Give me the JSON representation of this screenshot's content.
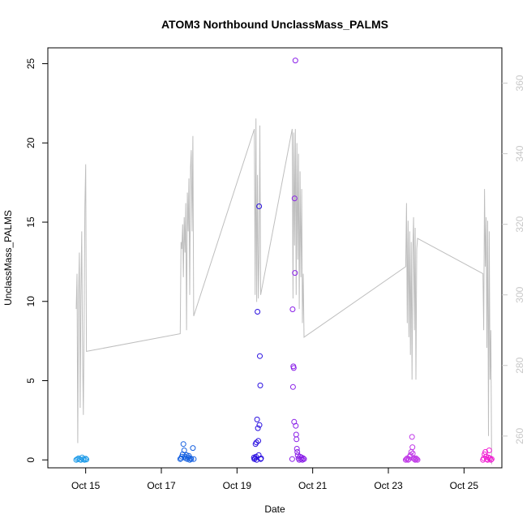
{
  "chart_data": {
    "type": "scatter",
    "title": "ATOM3 Northbound UnclassMass_PALMS",
    "xlabel": "Date",
    "ylabel": "UnclassMass_PALMS",
    "xlim": [
      "2017-10-14",
      "2017-10-26"
    ],
    "ylim": [
      -0.5,
      26
    ],
    "y2lim": [
      251,
      370
    ],
    "x_ticks": [
      "Oct 15",
      "Oct 17",
      "Oct 19",
      "Oct 21",
      "Oct 23",
      "Oct 25"
    ],
    "x_tick_dates": [
      "2017-10-15",
      "2017-10-17",
      "2017-10-19",
      "2017-10-21",
      "2017-10-23",
      "2017-10-25"
    ],
    "y_ticks": [
      0,
      5,
      10,
      15,
      20,
      25
    ],
    "y2_ticks": [
      260,
      280,
      300,
      320,
      340,
      360
    ],
    "colors": {
      "frame": "#000000",
      "right_axis": "#c8c8c8",
      "line": "#bebebe"
    },
    "line_series": {
      "axis": "right",
      "points": [
        [
          "2017-10-14T18:00",
          296
        ],
        [
          "2017-10-14T18:30",
          306
        ],
        [
          "2017-10-14T19:00",
          258
        ],
        [
          "2017-10-14T19:30",
          300
        ],
        [
          "2017-10-14T20:00",
          312
        ],
        [
          "2017-10-14T20:30",
          268
        ],
        [
          "2017-10-14T21:00",
          300
        ],
        [
          "2017-10-14T21:30",
          318
        ],
        [
          "2017-10-14T22:00",
          284
        ],
        [
          "2017-10-14T22:30",
          266
        ],
        [
          "2017-10-14T23:00",
          290
        ],
        [
          "2017-10-14T23:30",
          325
        ],
        [
          "2017-10-15T00:00",
          337
        ],
        [
          "2017-10-15T00:30",
          284
        ],
        [
          "2017-10-17T12:00",
          289
        ],
        [
          "2017-10-17T12:30",
          315
        ],
        [
          "2017-10-17T13:00",
          313
        ],
        [
          "2017-10-17T13:30",
          320
        ],
        [
          "2017-10-17T14:00",
          305
        ],
        [
          "2017-10-17T14:30",
          322
        ],
        [
          "2017-10-17T15:00",
          312
        ],
        [
          "2017-10-17T15:30",
          326
        ],
        [
          "2017-10-17T16:00",
          290
        ],
        [
          "2017-10-17T16:30",
          329
        ],
        [
          "2017-10-17T17:00",
          318
        ],
        [
          "2017-10-17T17:30",
          333
        ],
        [
          "2017-10-17T18:00",
          300
        ],
        [
          "2017-10-17T18:30",
          336
        ],
        [
          "2017-10-17T19:00",
          341
        ],
        [
          "2017-10-17T19:30",
          318
        ],
        [
          "2017-10-17T20:00",
          345
        ],
        [
          "2017-10-17T20:30",
          294
        ],
        [
          "2017-10-19T11:00",
          347
        ],
        [
          "2017-10-19T11:30",
          300
        ],
        [
          "2017-10-19T12:00",
          350
        ],
        [
          "2017-10-19T12:30",
          298
        ],
        [
          "2017-10-19T13:00",
          334
        ],
        [
          "2017-10-19T13:30",
          299
        ],
        [
          "2017-10-19T14:00",
          312
        ],
        [
          "2017-10-19T14:30",
          348
        ],
        [
          "2017-10-19T15:00",
          300
        ],
        [
          "2017-10-20T11:00",
          347
        ],
        [
          "2017-10-20T11:30",
          299
        ],
        [
          "2017-10-20T12:00",
          346
        ],
        [
          "2017-10-20T12:30",
          314
        ],
        [
          "2017-10-20T13:00",
          347
        ],
        [
          "2017-10-20T13:30",
          300
        ],
        [
          "2017-10-20T14:00",
          343
        ],
        [
          "2017-10-20T14:30",
          310
        ],
        [
          "2017-10-20T15:00",
          340
        ],
        [
          "2017-10-20T15:30",
          296
        ],
        [
          "2017-10-20T16:00",
          335
        ],
        [
          "2017-10-20T16:30",
          305
        ],
        [
          "2017-10-20T17:00",
          330
        ],
        [
          "2017-10-20T17:30",
          292
        ],
        [
          "2017-10-20T18:00",
          306
        ],
        [
          "2017-10-20T18:30",
          288
        ],
        [
          "2017-10-23T11:00",
          308
        ],
        [
          "2017-10-23T11:30",
          326
        ],
        [
          "2017-10-23T12:00",
          292
        ],
        [
          "2017-10-23T12:30",
          321
        ],
        [
          "2017-10-23T13:00",
          288
        ],
        [
          "2017-10-23T13:30",
          318
        ],
        [
          "2017-10-23T14:00",
          283
        ],
        [
          "2017-10-23T14:30",
          315
        ],
        [
          "2017-10-23T15:00",
          276
        ],
        [
          "2017-10-23T15:30",
          312
        ],
        [
          "2017-10-23T16:00",
          322
        ],
        [
          "2017-10-23T16:30",
          290
        ],
        [
          "2017-10-23T17:00",
          319
        ],
        [
          "2017-10-23T17:30",
          276
        ],
        [
          "2017-10-23T18:00",
          313
        ],
        [
          "2017-10-23T18:30",
          316
        ],
        [
          "2017-10-25T12:00",
          306
        ],
        [
          "2017-10-25T12:30",
          290
        ],
        [
          "2017-10-25T13:00",
          330
        ],
        [
          "2017-10-25T13:30",
          308
        ],
        [
          "2017-10-25T14:00",
          322
        ],
        [
          "2017-10-25T14:30",
          285
        ],
        [
          "2017-10-25T15:00",
          321
        ],
        [
          "2017-10-25T15:30",
          260
        ],
        [
          "2017-10-25T16:00",
          318
        ],
        [
          "2017-10-25T16:30",
          276
        ],
        [
          "2017-10-25T17:00",
          290
        ],
        [
          "2017-10-25T17:30",
          252
        ]
      ]
    },
    "scatter_groups": [
      {
        "color": "#1e9be8",
        "points": [
          [
            "2017-10-14T18:00",
            0
          ],
          [
            "2017-10-14T18:45",
            0.05
          ],
          [
            "2017-10-14T19:30",
            0.1
          ],
          [
            "2017-10-14T20:15",
            0.02
          ],
          [
            "2017-10-14T21:00",
            0.0
          ],
          [
            "2017-10-14T21:45",
            0.15
          ],
          [
            "2017-10-14T22:30",
            0.05
          ],
          [
            "2017-10-14T23:15",
            0.0
          ],
          [
            "2017-10-15T00:00",
            0.08
          ],
          [
            "2017-10-15T00:30",
            0.02
          ]
        ]
      },
      {
        "color": "#1560e0",
        "points": [
          [
            "2017-10-17T12:00",
            0.05
          ],
          [
            "2017-10-17T12:30",
            0.1
          ],
          [
            "2017-10-17T13:00",
            0.2
          ],
          [
            "2017-10-17T13:30",
            0.35
          ],
          [
            "2017-10-17T14:00",
            1.0
          ],
          [
            "2017-10-17T14:30",
            0.6
          ],
          [
            "2017-10-17T15:00",
            0.2
          ],
          [
            "2017-10-17T15:30",
            0.1
          ],
          [
            "2017-10-17T16:00",
            0.3
          ],
          [
            "2017-10-17T16:30",
            0.05
          ],
          [
            "2017-10-17T17:00",
            0.15
          ],
          [
            "2017-10-17T17:30",
            0.25
          ],
          [
            "2017-10-17T18:00",
            0.0
          ],
          [
            "2017-10-17T18:30",
            0.1
          ],
          [
            "2017-10-17T19:00",
            0.05
          ],
          [
            "2017-10-17T20:00",
            0.75
          ],
          [
            "2017-10-17T20:30",
            0.05
          ]
        ]
      },
      {
        "color": "#2a10e0",
        "points": [
          [
            "2017-10-19T11:00",
            0.05
          ],
          [
            "2017-10-19T11:30",
            0.1
          ],
          [
            "2017-10-19T12:00",
            0.2
          ],
          [
            "2017-10-19T12:15",
            1.1
          ],
          [
            "2017-10-19T12:30",
            0.0
          ],
          [
            "2017-10-19T13:00",
            9.35
          ],
          [
            "2017-10-19T13:15",
            2.0
          ],
          [
            "2017-10-19T13:30",
            1.2
          ],
          [
            "2017-10-19T13:45",
            0.3
          ],
          [
            "2017-10-19T14:00",
            16.0
          ],
          [
            "2017-10-19T14:15",
            2.2
          ],
          [
            "2017-10-19T14:30",
            6.55
          ],
          [
            "2017-10-19T14:45",
            4.7
          ],
          [
            "2017-10-19T12:45",
            2.55
          ],
          [
            "2017-10-19T15:00",
            0.05
          ],
          [
            "2017-10-19T11:45",
            1.0
          ],
          [
            "2017-10-19T10:45",
            0.15
          ],
          [
            "2017-10-19T15:15",
            0.1
          ]
        ]
      },
      {
        "color": "#8a1fe8",
        "points": [
          [
            "2017-10-20T11:00",
            0.05
          ],
          [
            "2017-10-20T11:15",
            9.5
          ],
          [
            "2017-10-20T11:30",
            4.6
          ],
          [
            "2017-10-20T11:45",
            5.9
          ],
          [
            "2017-10-20T12:00",
            5.8
          ],
          [
            "2017-10-20T12:15",
            2.4
          ],
          [
            "2017-10-20T12:30",
            16.5
          ],
          [
            "2017-10-20T12:45",
            11.8
          ],
          [
            "2017-10-20T13:00",
            25.2
          ],
          [
            "2017-10-20T13:15",
            2.15
          ],
          [
            "2017-10-20T13:30",
            1.6
          ],
          [
            "2017-10-20T13:45",
            1.3
          ],
          [
            "2017-10-20T14:00",
            0.7
          ],
          [
            "2017-10-20T14:15",
            0.5
          ],
          [
            "2017-10-20T14:30",
            0.3
          ],
          [
            "2017-10-20T15:00",
            0.1
          ],
          [
            "2017-10-20T15:30",
            0.0
          ],
          [
            "2017-10-20T16:00",
            0.2
          ],
          [
            "2017-10-20T16:30",
            0.05
          ],
          [
            "2017-10-20T17:00",
            0.15
          ],
          [
            "2017-10-20T17:30",
            0.0
          ],
          [
            "2017-10-20T18:00",
            0.1
          ],
          [
            "2017-10-20T18:30",
            0.05
          ]
        ]
      },
      {
        "color": "#c03ae8",
        "points": [
          [
            "2017-10-23T11:00",
            0.0
          ],
          [
            "2017-10-23T11:30",
            0.05
          ],
          [
            "2017-10-23T12:00",
            0.1
          ],
          [
            "2017-10-23T12:30",
            0.0
          ],
          [
            "2017-10-23T13:00",
            0.05
          ],
          [
            "2017-10-23T13:30",
            0.2
          ],
          [
            "2017-10-23T14:00",
            0.3
          ],
          [
            "2017-10-23T14:30",
            0.5
          ],
          [
            "2017-10-23T15:00",
            1.45
          ],
          [
            "2017-10-23T15:15",
            0.8
          ],
          [
            "2017-10-23T15:30",
            0.4
          ],
          [
            "2017-10-23T16:00",
            0.1
          ],
          [
            "2017-10-23T16:30",
            0.05
          ],
          [
            "2017-10-23T17:00",
            0.0
          ],
          [
            "2017-10-23T17:30",
            0.1
          ],
          [
            "2017-10-23T18:00",
            0.05
          ],
          [
            "2017-10-23T18:30",
            0.0
          ]
        ]
      },
      {
        "color": "#f01ed2",
        "points": [
          [
            "2017-10-25T12:00",
            0.0
          ],
          [
            "2017-10-25T12:30",
            0.1
          ],
          [
            "2017-10-25T13:00",
            0.35
          ],
          [
            "2017-10-25T13:30",
            0.5
          ],
          [
            "2017-10-25T14:00",
            0.2
          ],
          [
            "2017-10-25T14:30",
            0.05
          ],
          [
            "2017-10-25T15:00",
            0.0
          ],
          [
            "2017-10-25T15:30",
            0.15
          ],
          [
            "2017-10-25T16:00",
            0.6
          ],
          [
            "2017-10-25T16:30",
            0.1
          ],
          [
            "2017-10-25T17:00",
            0.0
          ],
          [
            "2017-10-25T17:30",
            0.05
          ]
        ]
      }
    ]
  }
}
